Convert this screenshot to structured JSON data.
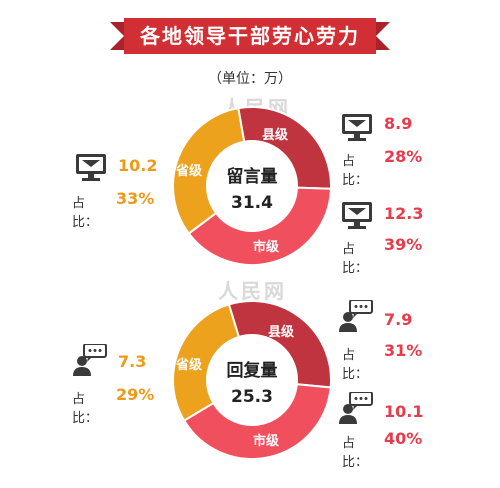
{
  "header": {
    "title": "各地领导干部劳心劳力",
    "unit": "（单位：万）"
  },
  "colors": {
    "banner": "#d12f34",
    "county": "#c0343f",
    "city": "#f0505e",
    "province": "#eda21d",
    "text_red": "#e63c4b",
    "text_orange": "#ee9a18"
  },
  "watermark": "人民网",
  "share_prefix": "占比：",
  "chart_data": [
    {
      "type": "pie",
      "center_title": "留言量",
      "total": "31.4",
      "slices": [
        {
          "name": "县级",
          "value": 8.9,
          "share": "28%"
        },
        {
          "name": "市级",
          "value": 12.3,
          "share": "39%"
        },
        {
          "name": "省级",
          "value": 10.2,
          "share": "33%"
        }
      ]
    },
    {
      "type": "pie",
      "center_title": "回复量",
      "total": "25.3",
      "slices": [
        {
          "name": "县级",
          "value": 7.9,
          "share": "31%"
        },
        {
          "name": "市级",
          "value": 10.1,
          "share": "40%"
        },
        {
          "name": "省级",
          "value": 7.3,
          "share": "29%"
        }
      ]
    }
  ]
}
